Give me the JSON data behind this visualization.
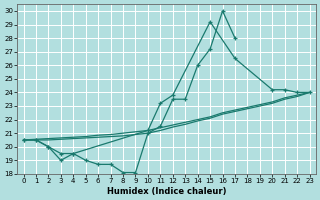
{
  "xlabel": "Humidex (Indice chaleur)",
  "bg_color": "#b2dfdf",
  "grid_color": "#ffffff",
  "line_color": "#1a7a6e",
  "xlim": [
    -0.5,
    23.5
  ],
  "ylim": [
    18,
    30.5
  ],
  "yticks": [
    18,
    19,
    20,
    21,
    22,
    23,
    24,
    25,
    26,
    27,
    28,
    29,
    30
  ],
  "xticks": [
    0,
    1,
    2,
    3,
    4,
    5,
    6,
    7,
    8,
    9,
    10,
    11,
    12,
    13,
    14,
    15,
    16,
    17,
    18,
    19,
    20,
    21,
    22,
    23
  ],
  "s1_x": [
    0,
    1,
    2,
    3,
    4,
    5,
    6,
    7,
    8,
    9,
    10,
    11,
    12,
    13,
    14,
    15,
    16,
    17
  ],
  "s1_y": [
    20.5,
    20.5,
    20.0,
    19.0,
    19.5,
    19.0,
    18.7,
    18.7,
    18.1,
    18.1,
    21.0,
    21.5,
    23.5,
    23.5,
    26.0,
    27.2,
    30.0,
    28.0
  ],
  "s2_x": [
    0,
    1,
    2,
    3,
    4,
    10,
    11,
    12,
    15,
    17,
    20,
    21,
    22,
    23
  ],
  "s2_y": [
    20.5,
    20.5,
    20.0,
    19.5,
    19.5,
    21.2,
    23.2,
    23.8,
    29.2,
    26.5,
    24.2,
    24.2,
    24.0,
    24.0
  ],
  "s3_x": [
    0,
    1,
    2,
    3,
    4,
    5,
    6,
    7,
    8,
    9,
    10,
    11,
    12,
    13,
    14,
    15,
    16,
    17,
    18,
    19,
    20,
    21,
    22,
    23
  ],
  "s3_y": [
    20.5,
    20.55,
    20.6,
    20.65,
    20.7,
    20.75,
    20.85,
    20.9,
    21.0,
    21.1,
    21.2,
    21.4,
    21.6,
    21.8,
    22.0,
    22.2,
    22.5,
    22.7,
    22.9,
    23.1,
    23.3,
    23.6,
    23.8,
    24.0
  ],
  "s4_x": [
    0,
    1,
    2,
    3,
    4,
    5,
    6,
    7,
    8,
    9,
    10,
    11,
    12,
    13,
    14,
    15,
    16,
    17,
    18,
    19,
    20,
    21,
    22,
    23
  ],
  "s4_y": [
    20.5,
    20.5,
    20.5,
    20.55,
    20.6,
    20.65,
    20.7,
    20.75,
    20.8,
    20.9,
    21.0,
    21.2,
    21.45,
    21.65,
    21.9,
    22.1,
    22.4,
    22.6,
    22.8,
    23.0,
    23.2,
    23.5,
    23.7,
    24.0
  ]
}
